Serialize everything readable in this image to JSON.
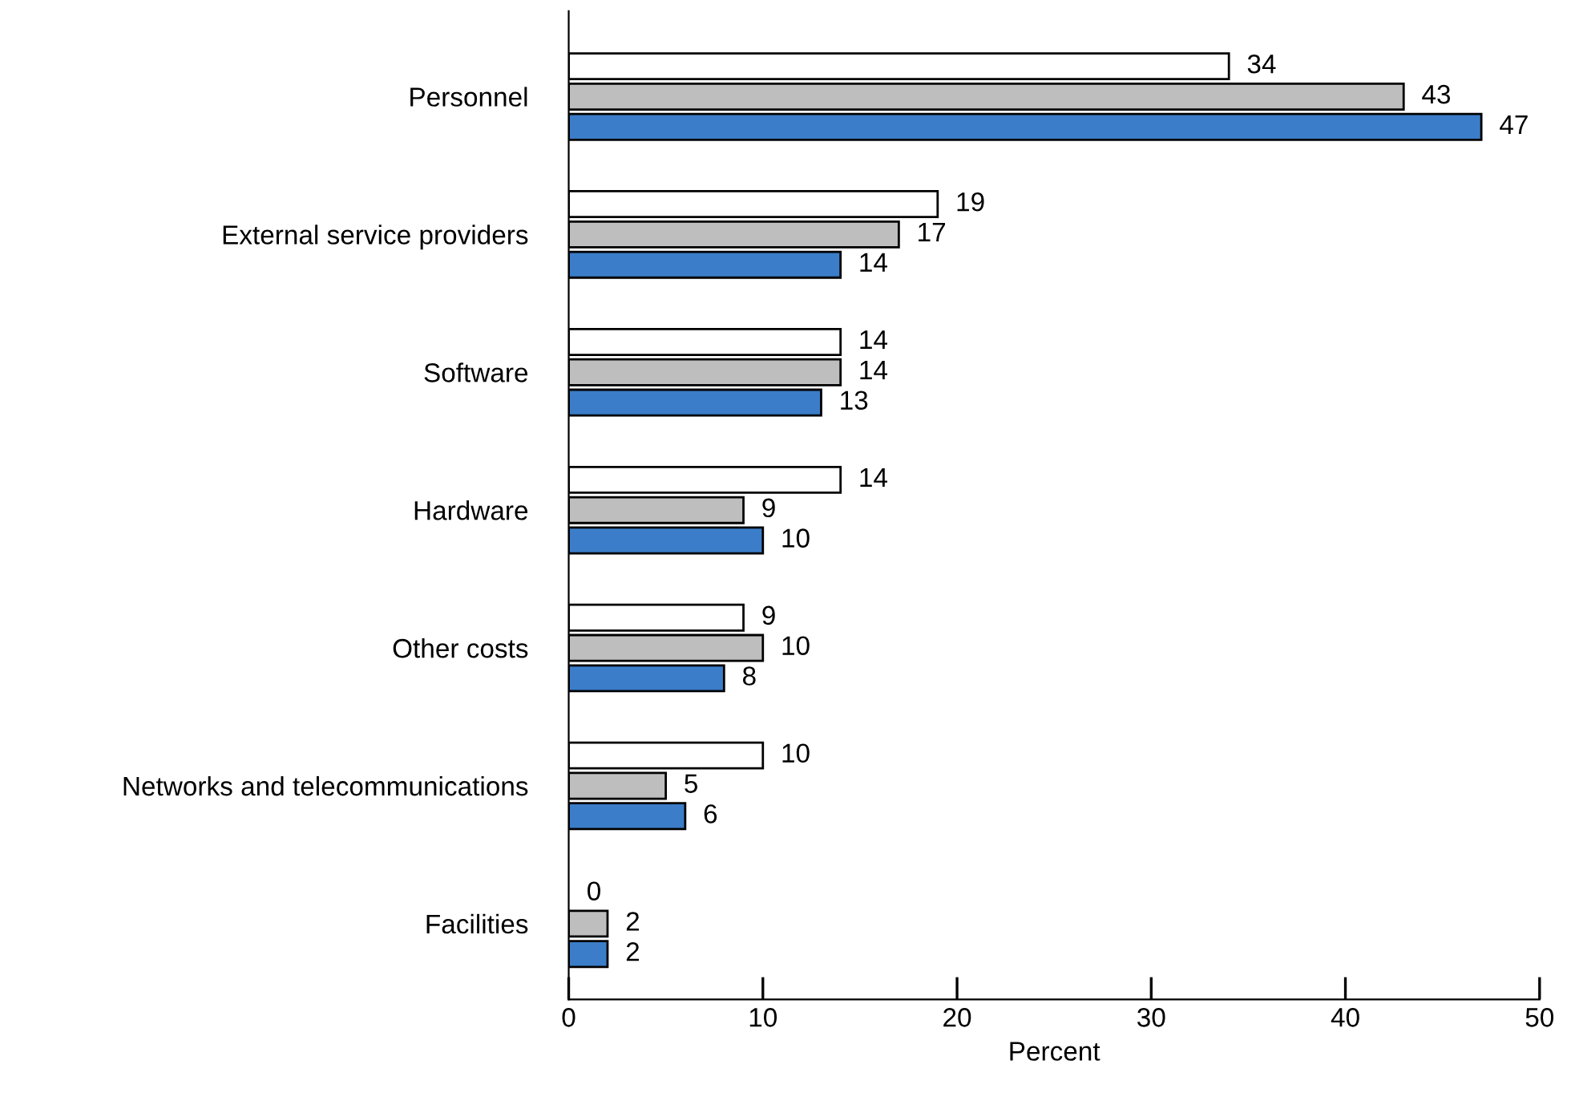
{
  "chart_data": {
    "type": "bar",
    "orientation": "horizontal",
    "xlabel": "Percent",
    "categories": [
      "Personnel",
      "External service providers",
      "Software",
      "Hardware",
      "Other costs",
      "Networks and telecommunications",
      "Facilities"
    ],
    "series": [
      {
        "color": "#ffffff",
        "values": [
          34,
          19,
          14,
          14,
          9,
          10,
          0
        ]
      },
      {
        "color": "#bebebe",
        "values": [
          43,
          17,
          14,
          9,
          10,
          5,
          2
        ]
      },
      {
        "color": "#3b7dc8",
        "values": [
          47,
          14,
          13,
          10,
          8,
          6,
          2
        ]
      }
    ],
    "xlim": [
      0,
      50
    ],
    "xticks": [
      0,
      10,
      20,
      30,
      40,
      50
    ],
    "data_labels": true,
    "grid": false,
    "legend": false
  }
}
